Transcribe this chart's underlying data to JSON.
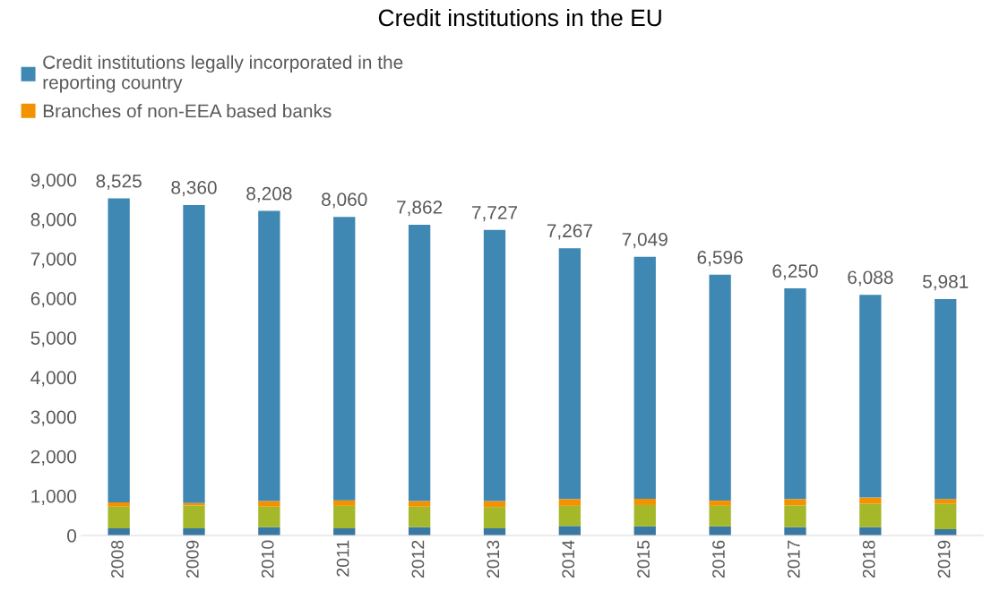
{
  "chart_data": {
    "type": "bar",
    "title": "Credit institutions in the EU",
    "stacked": true,
    "categories": [
      "2008",
      "2009",
      "2010",
      "2011",
      "2012",
      "2013",
      "2014",
      "2015",
      "2016",
      "2017",
      "2018",
      "2019"
    ],
    "series": [
      {
        "color": "#3878a3",
        "values": [
          180,
          180,
          210,
          180,
          210,
          180,
          240,
          230,
          230,
          210,
          210,
          160
        ]
      },
      {
        "color": "#a5b82a",
        "values": [
          550,
          580,
          520,
          570,
          520,
          540,
          510,
          540,
          520,
          550,
          590,
          640
        ]
      },
      {
        "name": "Branches of non-EEA based banks",
        "color": "#f39200",
        "values": [
          110,
          60,
          140,
          140,
          140,
          150,
          170,
          160,
          130,
          160,
          160,
          120
        ]
      },
      {
        "name": "Credit institutions legally incorporated in the reporting country",
        "color": "#3f88b4",
        "values": [
          7685,
          7540,
          7338,
          7170,
          6992,
          6857,
          6347,
          6119,
          5716,
          5330,
          5128,
          5061
        ]
      }
    ],
    "totals": [
      "8,525",
      "8,360",
      "8,208",
      "8,060",
      "7,862",
      "7,727",
      "7,267",
      "7,049",
      "6,596",
      "6,250",
      "6,088",
      "5,981"
    ],
    "ylim": [
      0,
      9000
    ],
    "yticks": [
      {
        "value": 0,
        "label": "0"
      },
      {
        "value": 1000,
        "label": "1,000"
      },
      {
        "value": 2000,
        "label": "2,000"
      },
      {
        "value": 3000,
        "label": "3,000"
      },
      {
        "value": 4000,
        "label": "4,000"
      },
      {
        "value": 5000,
        "label": "5,000"
      },
      {
        "value": 6000,
        "label": "6,000"
      },
      {
        "value": 7000,
        "label": "7,000"
      },
      {
        "value": 8000,
        "label": "8,000"
      },
      {
        "value": 9000,
        "label": "9,000"
      }
    ],
    "grid": false,
    "legend": "top left"
  }
}
